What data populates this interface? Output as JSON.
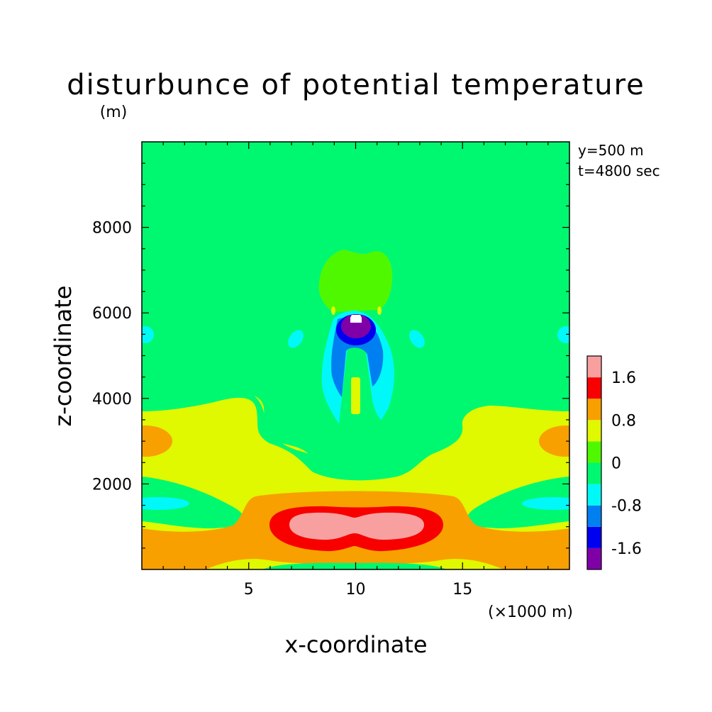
{
  "chart_data": {
    "type": "heatmap",
    "title": "disturbunce of potential temperature",
    "unit": "(m)",
    "annotations": [
      "y=500 m",
      "t=4800 sec"
    ],
    "xlabel": "x-coordinate",
    "ylabel": "z-coordinate",
    "x_unit": "(×1000 m)",
    "xlim": [
      0,
      20
    ],
    "ylim": [
      0,
      10000
    ],
    "x_ticks": [
      5,
      10,
      15
    ],
    "x_tick_labels": [
      "5",
      "10",
      "15"
    ],
    "y_ticks": [
      2000,
      4000,
      6000,
      8000
    ],
    "y_tick_labels": [
      "2000",
      "4000",
      "6000",
      "8000"
    ],
    "colorbar": {
      "levels": [
        -2.0,
        -1.6,
        -1.2,
        -0.8,
        -0.4,
        0,
        0.4,
        0.8,
        1.2,
        1.6,
        2.0
      ],
      "colors": [
        "#8000a8",
        "#0000f0",
        "#0080f0",
        "#00f8f8",
        "#00f870",
        "#50f800",
        "#e0f800",
        "#f8a000",
        "#f80000",
        "#f8a0a0"
      ],
      "tick_values": [
        -1.6,
        -0.8,
        0,
        0.8,
        1.6
      ],
      "tick_labels": [
        "-1.6",
        "-0.8",
        "0",
        "0.8",
        "1.6"
      ]
    }
  }
}
